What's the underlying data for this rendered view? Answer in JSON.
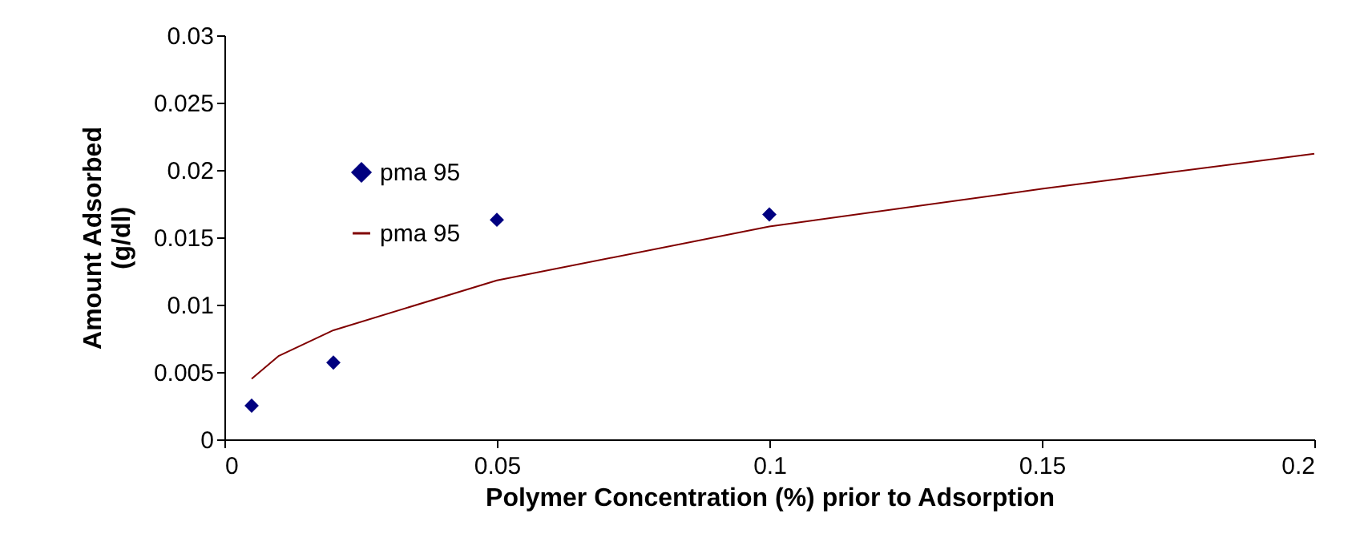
{
  "chart_data": {
    "type": "scatter",
    "xlabel": "Polymer Concentration (%) prior to Adsorption",
    "ylabel": "Amount Adsorbed\n(g/dl)",
    "series": [
      {
        "name": "pma 95",
        "color": "#000080",
        "marker": "diamond",
        "x": [
          0.005,
          0.02,
          0.05,
          0.1
        ],
        "values": [
          0.0025,
          0.0057,
          0.0163,
          0.0167
        ]
      },
      {
        "name": "pma 95",
        "type": "line",
        "color": "#800000",
        "x": [
          0.005,
          0.01,
          0.02,
          0.05,
          0.1,
          0.15,
          0.2
        ],
        "values": [
          0.0045,
          0.0062,
          0.0081,
          0.0118,
          0.0158,
          0.0186,
          0.0212
        ]
      }
    ],
    "xlim": [
      0,
      0.2
    ],
    "xticks": [
      0,
      0.05,
      0.1,
      0.15,
      0.2
    ],
    "ylim": [
      0,
      0.03
    ],
    "yticks": [
      0,
      0.005,
      0.01,
      0.015,
      0.02,
      0.025,
      0.03
    ],
    "grid": false,
    "legend": "top left"
  }
}
